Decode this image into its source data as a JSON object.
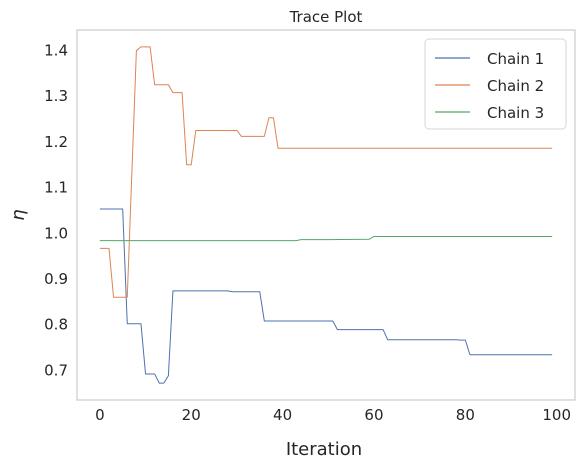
{
  "chart_data": {
    "type": "line",
    "title": "Trace Plot",
    "xlabel": "Iteration",
    "ylabel": "η",
    "xlim": [
      -5,
      104
    ],
    "ylim": [
      0.635,
      1.445
    ],
    "xticks": [
      0,
      20,
      40,
      60,
      80,
      100
    ],
    "yticks": [
      0.7,
      0.8,
      0.9,
      1.0,
      1.1,
      1.2,
      1.3,
      1.4
    ],
    "ytick_labels": [
      "0.7",
      "0.8",
      "0.9",
      "1.0",
      "1.1",
      "1.2",
      "1.3",
      "1.4"
    ],
    "grid": false,
    "legend_position": "top-right",
    "series": [
      {
        "name": "Chain 1",
        "color": "#4c72b0",
        "x": [
          0,
          1,
          2,
          3,
          4,
          5,
          6,
          7,
          8,
          9,
          10,
          11,
          12,
          13,
          14,
          15,
          16,
          17,
          18,
          19,
          20,
          21,
          22,
          23,
          24,
          25,
          26,
          27,
          28,
          29,
          30,
          31,
          32,
          33,
          34,
          35,
          36,
          37,
          38,
          39,
          40,
          41,
          42,
          43,
          44,
          45,
          46,
          47,
          48,
          49,
          50,
          51,
          52,
          53,
          54,
          55,
          56,
          57,
          58,
          59,
          60,
          61,
          62,
          63,
          64,
          65,
          66,
          67,
          68,
          69,
          70,
          71,
          72,
          73,
          74,
          75,
          76,
          77,
          78,
          79,
          80,
          81,
          82,
          83,
          84,
          85,
          86,
          87,
          88,
          89,
          90,
          91,
          92,
          93,
          94,
          95,
          96,
          97,
          98,
          99
        ],
        "y": [
          1.053,
          1.053,
          1.053,
          1.053,
          1.053,
          1.053,
          0.802,
          0.802,
          0.802,
          0.802,
          0.692,
          0.692,
          0.692,
          0.672,
          0.672,
          0.688,
          0.874,
          0.874,
          0.874,
          0.874,
          0.874,
          0.874,
          0.874,
          0.874,
          0.874,
          0.874,
          0.874,
          0.874,
          0.874,
          0.872,
          0.872,
          0.872,
          0.872,
          0.872,
          0.872,
          0.872,
          0.808,
          0.808,
          0.808,
          0.808,
          0.808,
          0.808,
          0.808,
          0.808,
          0.808,
          0.808,
          0.808,
          0.808,
          0.808,
          0.808,
          0.808,
          0.808,
          0.789,
          0.789,
          0.789,
          0.789,
          0.789,
          0.789,
          0.789,
          0.789,
          0.789,
          0.789,
          0.789,
          0.767,
          0.767,
          0.767,
          0.767,
          0.767,
          0.767,
          0.767,
          0.767,
          0.767,
          0.767,
          0.767,
          0.767,
          0.767,
          0.767,
          0.767,
          0.767,
          0.766,
          0.766,
          0.734,
          0.734,
          0.734,
          0.734,
          0.734,
          0.734,
          0.734,
          0.734,
          0.734,
          0.734,
          0.734,
          0.734,
          0.734,
          0.734,
          0.734,
          0.734,
          0.734,
          0.734,
          0.734
        ]
      },
      {
        "name": "Chain 2",
        "color": "#dd8452",
        "x": [
          0,
          1,
          2,
          3,
          4,
          5,
          6,
          7,
          8,
          9,
          10,
          11,
          12,
          13,
          14,
          15,
          16,
          17,
          18,
          19,
          20,
          21,
          22,
          23,
          24,
          25,
          26,
          27,
          28,
          29,
          30,
          31,
          32,
          33,
          34,
          35,
          36,
          37,
          38,
          39,
          40,
          41,
          42,
          43,
          44,
          45,
          46,
          47,
          48,
          49,
          50,
          51,
          52,
          53,
          54,
          55,
          56,
          57,
          58,
          59,
          60,
          61,
          62,
          63,
          64,
          65,
          66,
          67,
          68,
          69,
          70,
          71,
          72,
          73,
          74,
          75,
          76,
          77,
          78,
          79,
          80,
          81,
          82,
          83,
          84,
          85,
          86,
          87,
          88,
          89,
          90,
          91,
          92,
          93,
          94,
          95,
          96,
          97,
          98,
          99
        ],
        "y": [
          0.967,
          0.967,
          0.967,
          0.86,
          0.86,
          0.86,
          0.86,
          1.13,
          1.4,
          1.408,
          1.408,
          1.408,
          1.325,
          1.325,
          1.325,
          1.325,
          1.308,
          1.308,
          1.308,
          1.15,
          1.15,
          1.225,
          1.225,
          1.225,
          1.225,
          1.225,
          1.225,
          1.225,
          1.225,
          1.225,
          1.225,
          1.212,
          1.212,
          1.212,
          1.212,
          1.212,
          1.212,
          1.253,
          1.253,
          1.186,
          1.186,
          1.186,
          1.186,
          1.186,
          1.186,
          1.186,
          1.186,
          1.186,
          1.186,
          1.186,
          1.186,
          1.186,
          1.186,
          1.186,
          1.186,
          1.186,
          1.186,
          1.186,
          1.186,
          1.186,
          1.186,
          1.186,
          1.186,
          1.186,
          1.186,
          1.186,
          1.186,
          1.186,
          1.186,
          1.186,
          1.186,
          1.186,
          1.186,
          1.186,
          1.186,
          1.186,
          1.186,
          1.186,
          1.186,
          1.186,
          1.186,
          1.186,
          1.186,
          1.186,
          1.186,
          1.186,
          1.186,
          1.186,
          1.186,
          1.186,
          1.186,
          1.186,
          1.186,
          1.186,
          1.186,
          1.186,
          1.186,
          1.186,
          1.186,
          1.186
        ]
      },
      {
        "name": "Chain 3",
        "color": "#55a868",
        "x": [
          0,
          10,
          20,
          30,
          40,
          43,
          44,
          50,
          59,
          60,
          70,
          80,
          90,
          99
        ],
        "y": [
          0.984,
          0.984,
          0.984,
          0.984,
          0.984,
          0.984,
          0.986,
          0.986,
          0.987,
          0.993,
          0.993,
          0.993,
          0.993,
          0.993
        ]
      }
    ]
  }
}
